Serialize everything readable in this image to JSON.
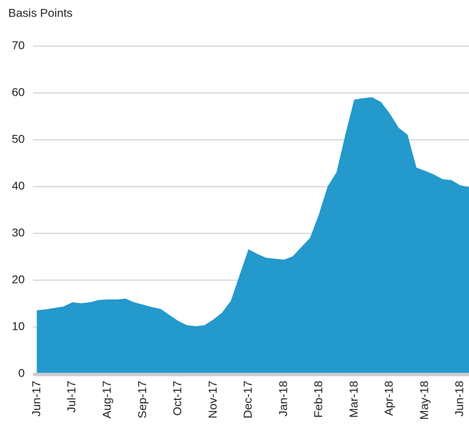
{
  "chart_data": {
    "type": "area",
    "y_axis_label": "Basis Points",
    "categories": [
      "Jun-17",
      null,
      null,
      null,
      "Jul-17",
      null,
      null,
      null,
      "Aug-17",
      null,
      null,
      null,
      "Sep-17",
      null,
      null,
      null,
      "Oct-17",
      null,
      null,
      null,
      "Nov-17",
      null,
      null,
      null,
      "Dec-17",
      null,
      null,
      null,
      "Jan-18",
      null,
      null,
      null,
      "Feb-18",
      null,
      null,
      null,
      "Mar-18",
      null,
      null,
      null,
      "Apr-18",
      null,
      null,
      null,
      "May-18",
      null,
      null,
      null,
      "Jun-18",
      null
    ],
    "values": [
      13.5,
      13.7,
      14,
      14.3,
      15.2,
      15,
      15.2,
      15.7,
      15.8,
      15.8,
      16,
      15.2,
      14.7,
      14.2,
      13.8,
      12.5,
      11.2,
      10.3,
      10.1,
      10.3,
      11.5,
      13,
      15.5,
      21,
      26.5,
      25.5,
      24.7,
      24.5,
      24.3,
      25,
      27,
      29,
      34,
      40,
      43,
      51,
      58.5,
      58.8,
      59,
      58,
      55.5,
      52.5,
      51,
      44,
      43.3,
      42.5,
      41.5,
      41.3,
      40.2,
      39.8
    ],
    "color": "#2399cc",
    "ylim": [
      0,
      70
    ],
    "yticks": [
      0,
      10,
      20,
      30,
      40,
      50,
      60,
      70
    ],
    "grid": true
  }
}
